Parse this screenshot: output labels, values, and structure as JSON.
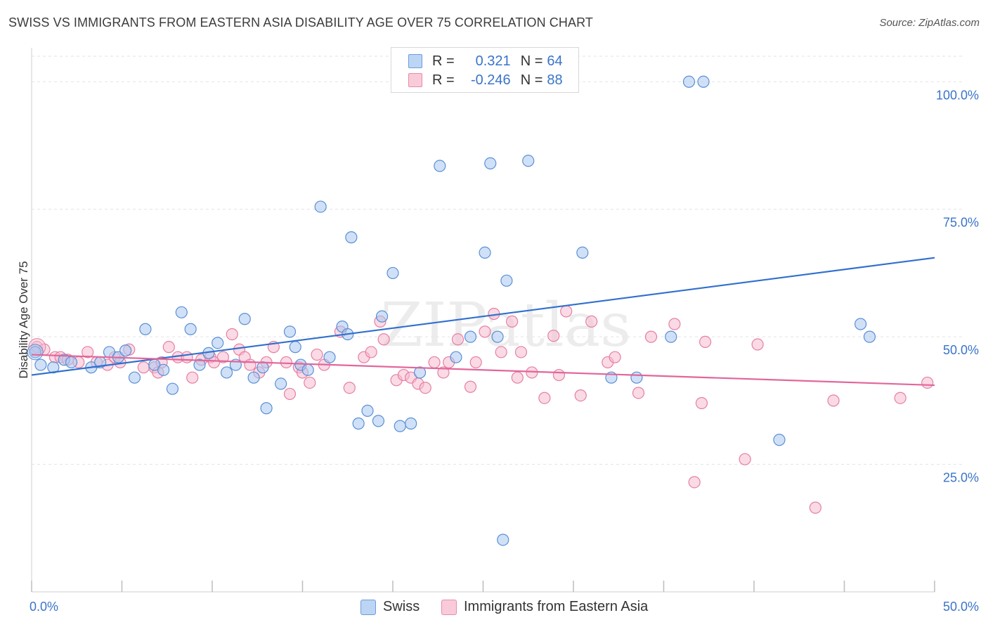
{
  "title": "SWISS VS IMMIGRANTS FROM EASTERN ASIA DISABILITY AGE OVER 75 CORRELATION CHART",
  "source": "Source: ZipAtlas.com",
  "watermark": "ZIPatlas",
  "legend": {
    "r_label": "R =",
    "n_label": "N =",
    "swiss": {
      "r": "0.321",
      "n": "64"
    },
    "immigrants": {
      "r": "-0.246",
      "n": "88"
    }
  },
  "bottom_legend": {
    "swiss": "Swiss",
    "immigrants": "Immigrants from Eastern Asia"
  },
  "colors": {
    "swiss_fill": "#a9c8f0",
    "swiss_stroke": "#5b8fd6",
    "swiss_line": "#2f6fce",
    "imm_fill": "#f6bccf",
    "imm_stroke": "#e67fa2",
    "imm_line": "#e2669a",
    "axis_text": "#3a74c9",
    "grid": "#e3e3e3"
  },
  "chart_data": {
    "type": "scatter",
    "title": "SWISS VS IMMIGRANTS FROM EASTERN ASIA DISABILITY AGE OVER 75 CORRELATION CHART",
    "xlabel": "",
    "ylabel": "Disability Age Over 75",
    "xlim": [
      0,
      50
    ],
    "ylim": [
      0,
      105
    ],
    "x_tick_labels": [
      "0.0%",
      "50.0%"
    ],
    "y_tick_labels": [
      "25.0%",
      "50.0%",
      "75.0%",
      "100.0%"
    ],
    "y_ticks": [
      25,
      50,
      75,
      100
    ],
    "grid": true,
    "series": [
      {
        "name": "Swiss",
        "trend": {
          "x": [
            0,
            50
          ],
          "y": [
            42.5,
            65.5
          ]
        },
        "points": [
          [
            0.2,
            47
          ],
          [
            0.5,
            44.5
          ],
          [
            1.2,
            44
          ],
          [
            1.8,
            45.5
          ],
          [
            2.2,
            45
          ],
          [
            3.3,
            44
          ],
          [
            3.8,
            45
          ],
          [
            4.3,
            47
          ],
          [
            4.8,
            46
          ],
          [
            5.2,
            47.3
          ],
          [
            5.7,
            42
          ],
          [
            6.3,
            51.5
          ],
          [
            6.8,
            44.5
          ],
          [
            7.3,
            43.5
          ],
          [
            7.8,
            39.8
          ],
          [
            8.3,
            54.8
          ],
          [
            8.8,
            51.5
          ],
          [
            9.3,
            44.5
          ],
          [
            9.8,
            46.8
          ],
          [
            10.3,
            48.8
          ],
          [
            10.8,
            43
          ],
          [
            11.3,
            44.5
          ],
          [
            11.8,
            53.5
          ],
          [
            12.3,
            42
          ],
          [
            12.8,
            44
          ],
          [
            13.0,
            36
          ],
          [
            13.8,
            40.8
          ],
          [
            14.3,
            51
          ],
          [
            14.6,
            48
          ],
          [
            14.9,
            44.5
          ],
          [
            15.3,
            43.5
          ],
          [
            16.0,
            75.5
          ],
          [
            16.5,
            46
          ],
          [
            17.2,
            52
          ],
          [
            17.5,
            50.5
          ],
          [
            17.7,
            69.5
          ],
          [
            18.1,
            33
          ],
          [
            18.6,
            35.5
          ],
          [
            19.2,
            33.5
          ],
          [
            19.4,
            54
          ],
          [
            20.0,
            62.5
          ],
          [
            20.4,
            32.5
          ],
          [
            21.0,
            33
          ],
          [
            21.5,
            43
          ],
          [
            22.6,
            83.5
          ],
          [
            23.5,
            46
          ],
          [
            24.3,
            50
          ],
          [
            25.1,
            66.5
          ],
          [
            25.4,
            84
          ],
          [
            25.8,
            50
          ],
          [
            26.3,
            61
          ],
          [
            26.1,
            10.2
          ],
          [
            27.5,
            84.5
          ],
          [
            30.5,
            66.5
          ],
          [
            32.1,
            42
          ],
          [
            33.5,
            42
          ],
          [
            35.4,
            50
          ],
          [
            36.4,
            100
          ],
          [
            37.2,
            100
          ],
          [
            41.4,
            29.8
          ],
          [
            45.9,
            52.5
          ],
          [
            46.4,
            50
          ]
        ]
      },
      {
        "name": "Immigrants from Eastern Asia",
        "trend": {
          "x": [
            0,
            50
          ],
          "y": [
            46.5,
            40.5
          ]
        },
        "points": [
          [
            0.3,
            48
          ],
          [
            0.7,
            47.5
          ],
          [
            1.3,
            46
          ],
          [
            1.6,
            46
          ],
          [
            2.0,
            45.5
          ],
          [
            2.6,
            45
          ],
          [
            3.1,
            47
          ],
          [
            3.6,
            45
          ],
          [
            4.2,
            44.5
          ],
          [
            4.6,
            46
          ],
          [
            4.9,
            45
          ],
          [
            5.4,
            47.5
          ],
          [
            6.2,
            44
          ],
          [
            6.8,
            44
          ],
          [
            7.0,
            43
          ],
          [
            7.2,
            45
          ],
          [
            7.6,
            48
          ],
          [
            8.1,
            46
          ],
          [
            8.6,
            46
          ],
          [
            8.9,
            42
          ],
          [
            9.4,
            45.5
          ],
          [
            9.9,
            46
          ],
          [
            10.1,
            45
          ],
          [
            10.6,
            46
          ],
          [
            11.1,
            50.5
          ],
          [
            11.5,
            47.5
          ],
          [
            11.8,
            46
          ],
          [
            12.1,
            44.5
          ],
          [
            12.6,
            43
          ],
          [
            13.0,
            45
          ],
          [
            13.4,
            48
          ],
          [
            14.1,
            45
          ],
          [
            14.3,
            38.8
          ],
          [
            14.8,
            44
          ],
          [
            15.0,
            43
          ],
          [
            15.4,
            41
          ],
          [
            15.8,
            46.5
          ],
          [
            16.2,
            44.5
          ],
          [
            17.1,
            51
          ],
          [
            17.6,
            40
          ],
          [
            18.4,
            46
          ],
          [
            18.8,
            47
          ],
          [
            19.3,
            53
          ],
          [
            19.5,
            49.5
          ],
          [
            20.2,
            41.5
          ],
          [
            20.6,
            42.5
          ],
          [
            21.0,
            42
          ],
          [
            21.4,
            40.8
          ],
          [
            21.8,
            40
          ],
          [
            22.3,
            45
          ],
          [
            22.8,
            43
          ],
          [
            23.1,
            45
          ],
          [
            23.6,
            49.5
          ],
          [
            24.3,
            40.2
          ],
          [
            24.6,
            45
          ],
          [
            25.1,
            51
          ],
          [
            25.6,
            54.5
          ],
          [
            26.0,
            47
          ],
          [
            26.6,
            53
          ],
          [
            26.9,
            42
          ],
          [
            27.1,
            47
          ],
          [
            27.7,
            43
          ],
          [
            28.4,
            38
          ],
          [
            28.9,
            50.2
          ],
          [
            29.2,
            42.5
          ],
          [
            29.6,
            55
          ],
          [
            30.4,
            38.5
          ],
          [
            31.0,
            53
          ],
          [
            31.9,
            45
          ],
          [
            32.3,
            46
          ],
          [
            33.6,
            39
          ],
          [
            34.3,
            50
          ],
          [
            35.6,
            52.5
          ],
          [
            36.7,
            21.5
          ],
          [
            37.1,
            37
          ],
          [
            37.3,
            49
          ],
          [
            39.5,
            26
          ],
          [
            40.2,
            48.5
          ],
          [
            43.4,
            16.5
          ],
          [
            44.4,
            37.5
          ],
          [
            48.1,
            38
          ],
          [
            49.6,
            41
          ]
        ]
      }
    ]
  }
}
